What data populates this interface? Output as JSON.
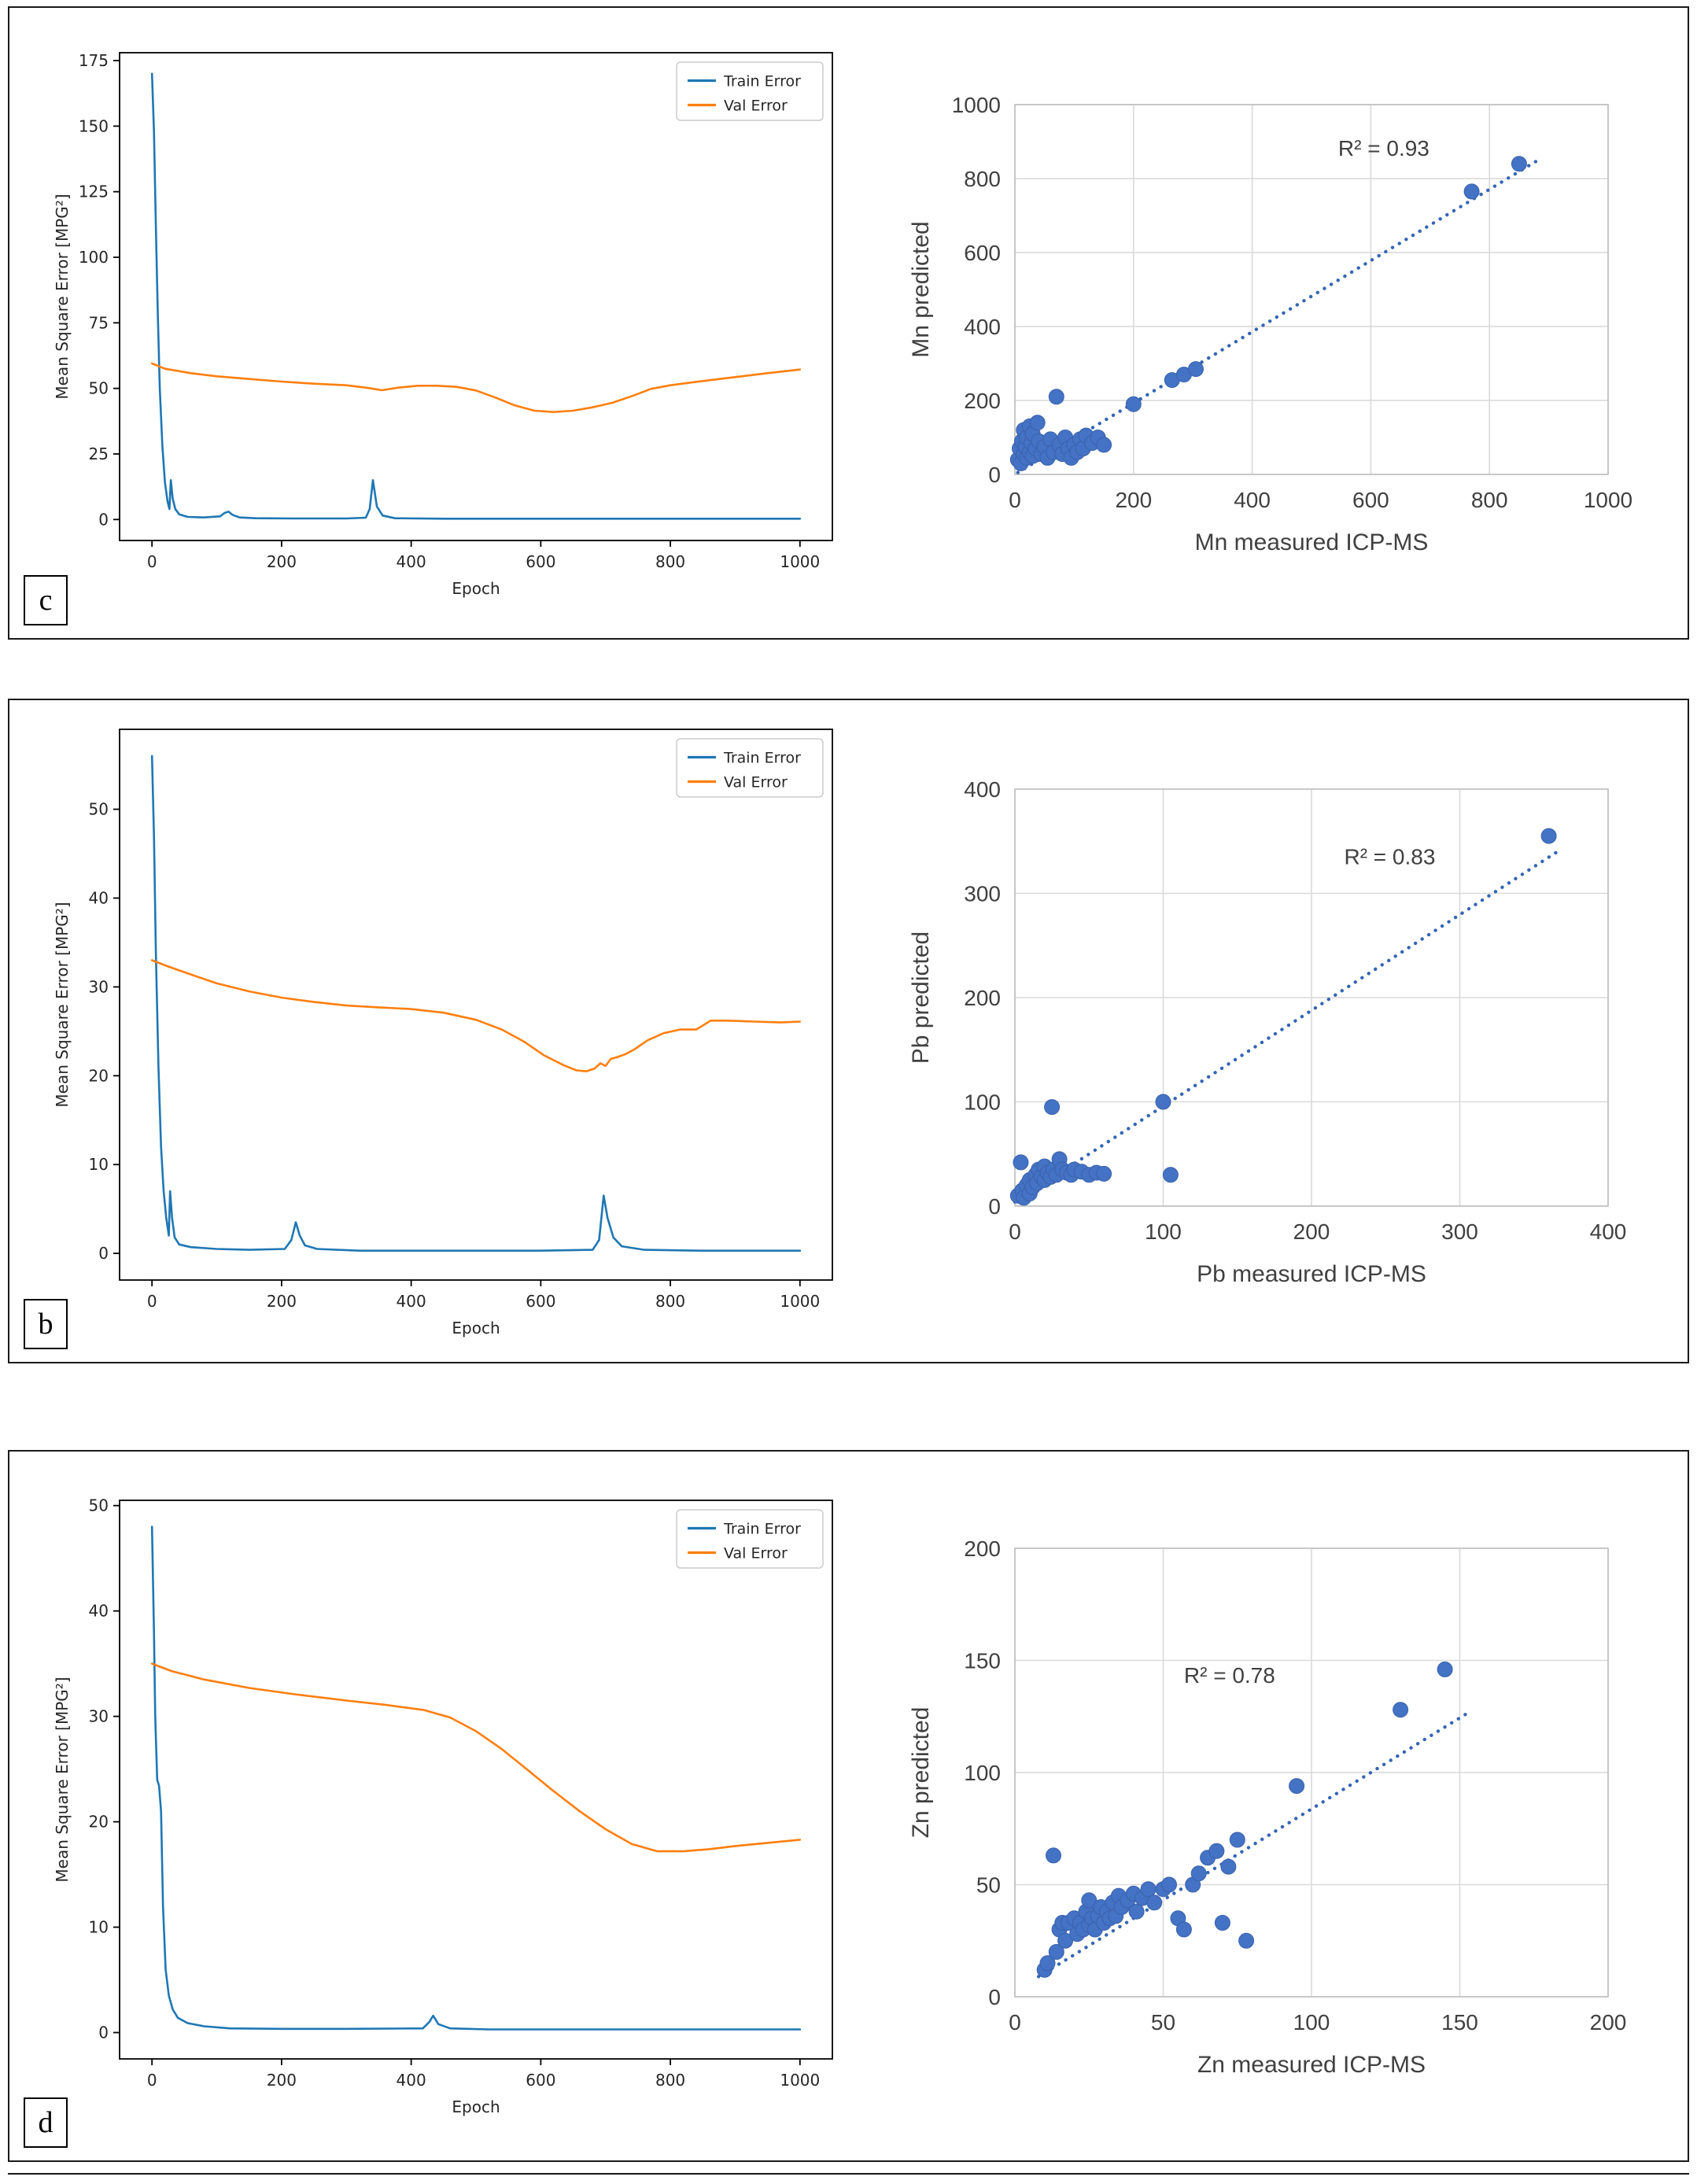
{
  "panels": [
    {
      "label": "c",
      "loss_chart_index": 0,
      "scatter_chart_index": 1
    },
    {
      "label": "b",
      "loss_chart_index": 2,
      "scatter_chart_index": 3
    },
    {
      "label": "d",
      "loss_chart_index": 4,
      "scatter_chart_index": 5
    }
  ],
  "colors": {
    "train_line": "#1f77b4",
    "val_line": "#ff7f0e",
    "scatter_point": "#4472c4",
    "trend_line": "#3465b4",
    "grid": "#d9d9d9",
    "plot_border_gray": "#bfbfbf",
    "axis_text_gray": "#404040",
    "axis_black": "#000000"
  },
  "chart_data": [
    {
      "type": "line",
      "title": "",
      "xlabel": "Epoch",
      "ylabel": "Mean Square Error [MPG²]",
      "xlim": [
        -50,
        1050
      ],
      "ylim": [
        -8,
        178
      ],
      "xticks": [
        0,
        200,
        400,
        600,
        800,
        1000
      ],
      "yticks": [
        0,
        25,
        50,
        75,
        100,
        125,
        150,
        175
      ],
      "legend_position": "top-right",
      "grid": false,
      "series": [
        {
          "name": "Train Error",
          "color": "#1f77b4",
          "x": [
            0,
            3,
            6,
            9,
            12,
            16,
            20,
            24,
            27,
            29,
            32,
            36,
            42,
            55,
            80,
            105,
            112,
            118,
            124,
            135,
            160,
            220,
            300,
            330,
            336,
            341,
            347,
            356,
            375,
            450,
            600,
            800,
            1000
          ],
          "y": [
            170,
            148,
            112,
            78,
            50,
            28,
            14,
            7,
            4,
            15,
            8,
            4,
            2,
            1,
            0.8,
            1.2,
            2.5,
            3,
            1.8,
            0.8,
            0.5,
            0.4,
            0.4,
            0.7,
            4,
            15,
            5,
            1.5,
            0.5,
            0.3,
            0.3,
            0.3,
            0.3
          ]
        },
        {
          "name": "Val Error",
          "color": "#ff7f0e",
          "x": [
            0,
            20,
            60,
            100,
            150,
            200,
            250,
            300,
            330,
            355,
            380,
            410,
            440,
            470,
            500,
            530,
            560,
            590,
            620,
            650,
            680,
            710,
            740,
            770,
            800,
            850,
            900,
            950,
            1000
          ],
          "y": [
            59.5,
            57.5,
            55.8,
            54.6,
            53.6,
            52.6,
            51.8,
            51.2,
            50.3,
            49.3,
            50.3,
            51,
            51,
            50.6,
            49.2,
            46.5,
            43.5,
            41.5,
            41,
            41.5,
            42.8,
            44.5,
            47,
            49.8,
            51.2,
            52.8,
            54.3,
            55.8,
            57.2
          ]
        }
      ]
    },
    {
      "type": "scatter",
      "title": "",
      "xlabel": "Mn measured ICP-MS",
      "ylabel": "Mn predicted",
      "xlim": [
        0,
        1000
      ],
      "ylim": [
        0,
        1000
      ],
      "xticks": [
        0,
        200,
        400,
        600,
        800,
        1000
      ],
      "yticks": [
        0,
        200,
        400,
        600,
        800,
        1000
      ],
      "grid": true,
      "r2_label": "R² = 0.93",
      "r2_pos": [
        545,
        862
      ],
      "point_color": "#4472c4",
      "trend_color": "#3465b4",
      "trend": [
        [
          5,
          5
        ],
        [
          880,
          848
        ]
      ],
      "points": [
        [
          5,
          40
        ],
        [
          8,
          70
        ],
        [
          10,
          30
        ],
        [
          12,
          90
        ],
        [
          15,
          55
        ],
        [
          15,
          120
        ],
        [
          18,
          75
        ],
        [
          20,
          45
        ],
        [
          20,
          100
        ],
        [
          25,
          60
        ],
        [
          25,
          130
        ],
        [
          28,
          85
        ],
        [
          30,
          50
        ],
        [
          30,
          110
        ],
        [
          35,
          70
        ],
        [
          38,
          140
        ],
        [
          40,
          90
        ],
        [
          45,
          55
        ],
        [
          50,
          75
        ],
        [
          55,
          45
        ],
        [
          60,
          95
        ],
        [
          65,
          60
        ],
        [
          70,
          210
        ],
        [
          75,
          80
        ],
        [
          80,
          55
        ],
        [
          85,
          100
        ],
        [
          90,
          70
        ],
        [
          95,
          45
        ],
        [
          100,
          80
        ],
        [
          105,
          60
        ],
        [
          110,
          95
        ],
        [
          115,
          70
        ],
        [
          120,
          105
        ],
        [
          130,
          85
        ],
        [
          140,
          100
        ],
        [
          150,
          80
        ],
        [
          200,
          190
        ],
        [
          265,
          255
        ],
        [
          285,
          270
        ],
        [
          305,
          285
        ],
        [
          770,
          765
        ],
        [
          850,
          840
        ]
      ]
    },
    {
      "type": "line",
      "title": "",
      "xlabel": "Epoch",
      "ylabel": "Mean Square Error [MPG²]",
      "xlim": [
        -50,
        1050
      ],
      "ylim": [
        -3,
        59
      ],
      "xticks": [
        0,
        200,
        400,
        600,
        800,
        1000
      ],
      "yticks": [
        0,
        10,
        20,
        30,
        40,
        50
      ],
      "legend_position": "top-right",
      "grid": false,
      "series": [
        {
          "name": "Train Error",
          "color": "#1f77b4",
          "x": [
            0,
            3,
            6,
            10,
            14,
            18,
            22,
            26,
            28,
            31,
            35,
            42,
            60,
            100,
            150,
            205,
            215,
            222,
            228,
            236,
            255,
            320,
            450,
            600,
            680,
            690,
            697,
            703,
            712,
            725,
            760,
            850,
            1000
          ],
          "y": [
            56,
            47,
            34,
            21,
            12,
            7,
            4,
            2,
            7,
            4,
            1.8,
            1,
            0.7,
            0.5,
            0.4,
            0.5,
            1.5,
            3.5,
            2,
            0.9,
            0.5,
            0.3,
            0.3,
            0.3,
            0.4,
            1.5,
            6.5,
            4,
            1.8,
            0.8,
            0.4,
            0.3,
            0.3
          ]
        },
        {
          "name": "Val Error",
          "color": "#ff7f0e",
          "x": [
            0,
            25,
            60,
            100,
            150,
            200,
            250,
            300,
            350,
            400,
            450,
            500,
            540,
            575,
            605,
            635,
            655,
            670,
            683,
            692,
            700,
            708,
            718,
            730,
            745,
            765,
            790,
            815,
            840,
            862,
            890,
            930,
            970,
            1000
          ],
          "y": [
            33,
            32.3,
            31.4,
            30.4,
            29.5,
            28.8,
            28.3,
            27.9,
            27.7,
            27.5,
            27.1,
            26.3,
            25.2,
            23.8,
            22.3,
            21.2,
            20.6,
            20.5,
            20.8,
            21.4,
            21.1,
            21.9,
            22.1,
            22.4,
            23,
            24,
            24.8,
            25.2,
            25.2,
            26.2,
            26.2,
            26.1,
            26,
            26.1
          ]
        }
      ]
    },
    {
      "type": "scatter",
      "title": "",
      "xlabel": "Pb measured ICP-MS",
      "ylabel": "Pb predicted",
      "xlim": [
        0,
        400
      ],
      "ylim": [
        0,
        400
      ],
      "xticks": [
        0,
        100,
        200,
        300,
        400
      ],
      "yticks": [
        0,
        100,
        200,
        300,
        400
      ],
      "grid": true,
      "r2_label": "R² = 0.83",
      "r2_pos": [
        222,
        328
      ],
      "point_color": "#4472c4",
      "trend_color": "#3465b4",
      "trend": [
        [
          0,
          4
        ],
        [
          368,
          342
        ]
      ],
      "points": [
        [
          2,
          10
        ],
        [
          4,
          42
        ],
        [
          5,
          15
        ],
        [
          6,
          8
        ],
        [
          8,
          20
        ],
        [
          10,
          12
        ],
        [
          10,
          25
        ],
        [
          12,
          18
        ],
        [
          14,
          30
        ],
        [
          15,
          22
        ],
        [
          16,
          35
        ],
        [
          18,
          28
        ],
        [
          20,
          25
        ],
        [
          20,
          38
        ],
        [
          22,
          32
        ],
        [
          24,
          28
        ],
        [
          25,
          95
        ],
        [
          26,
          35
        ],
        [
          28,
          30
        ],
        [
          30,
          45
        ],
        [
          32,
          35
        ],
        [
          35,
          32
        ],
        [
          38,
          30
        ],
        [
          40,
          35
        ],
        [
          45,
          33
        ],
        [
          50,
          30
        ],
        [
          55,
          32
        ],
        [
          60,
          31
        ],
        [
          100,
          100
        ],
        [
          105,
          30
        ],
        [
          360,
          355
        ]
      ]
    },
    {
      "type": "line",
      "title": "",
      "xlabel": "Epoch",
      "ylabel": "Mean Square Error [MPG²]",
      "xlim": [
        -50,
        1050
      ],
      "ylim": [
        -2.5,
        50.5
      ],
      "xticks": [
        0,
        200,
        400,
        600,
        800,
        1000
      ],
      "yticks": [
        0,
        10,
        20,
        30,
        40,
        50
      ],
      "legend_position": "top-right",
      "grid": false,
      "series": [
        {
          "name": "Train Error",
          "color": "#1f77b4",
          "x": [
            0,
            3,
            5,
            8,
            11,
            14,
            17,
            21,
            26,
            32,
            40,
            55,
            80,
            120,
            200,
            300,
            418,
            428,
            434,
            442,
            460,
            520,
            650,
            800,
            1000
          ],
          "y": [
            48,
            38,
            30,
            24,
            23.4,
            21,
            12,
            6,
            3.5,
            2.2,
            1.4,
            0.9,
            0.6,
            0.4,
            0.35,
            0.35,
            0.4,
            1,
            1.6,
            0.8,
            0.4,
            0.3,
            0.3,
            0.3,
            0.3
          ]
        },
        {
          "name": "Val Error",
          "color": "#ff7f0e",
          "x": [
            0,
            30,
            80,
            150,
            220,
            300,
            360,
            420,
            460,
            500,
            540,
            580,
            620,
            660,
            700,
            740,
            780,
            820,
            860,
            900,
            950,
            1000
          ],
          "y": [
            35,
            34.3,
            33.5,
            32.7,
            32.1,
            31.5,
            31.1,
            30.6,
            29.9,
            28.6,
            26.9,
            24.9,
            22.9,
            21,
            19.3,
            17.9,
            17.2,
            17.2,
            17.4,
            17.7,
            18,
            18.3
          ]
        }
      ]
    },
    {
      "type": "scatter",
      "title": "",
      "xlabel": "Zn measured ICP-MS",
      "ylabel": "Zn predicted",
      "xlim": [
        0,
        200
      ],
      "ylim": [
        0,
        200
      ],
      "xticks": [
        0,
        50,
        100,
        150,
        200
      ],
      "yticks": [
        0,
        50,
        100,
        150,
        200
      ],
      "grid": true,
      "r2_label": "R² = 0.78",
      "r2_pos": [
        57,
        140
      ],
      "point_color": "#4472c4",
      "trend_color": "#3465b4",
      "trend": [
        [
          8,
          9
        ],
        [
          152,
          126
        ]
      ],
      "points": [
        [
          10,
          12
        ],
        [
          11,
          15
        ],
        [
          13,
          63
        ],
        [
          14,
          20
        ],
        [
          15,
          30
        ],
        [
          16,
          33
        ],
        [
          17,
          25
        ],
        [
          18,
          33
        ],
        [
          20,
          35
        ],
        [
          21,
          28
        ],
        [
          22,
          33
        ],
        [
          23,
          30
        ],
        [
          24,
          38
        ],
        [
          25,
          32
        ],
        [
          25,
          43
        ],
        [
          26,
          35
        ],
        [
          27,
          30
        ],
        [
          28,
          36
        ],
        [
          29,
          40
        ],
        [
          30,
          33
        ],
        [
          31,
          38
        ],
        [
          32,
          35
        ],
        [
          33,
          42
        ],
        [
          34,
          36
        ],
        [
          35,
          45
        ],
        [
          36,
          40
        ],
        [
          38,
          43
        ],
        [
          40,
          46
        ],
        [
          41,
          38
        ],
        [
          43,
          44
        ],
        [
          45,
          48
        ],
        [
          47,
          42
        ],
        [
          50,
          48
        ],
        [
          52,
          50
        ],
        [
          55,
          35
        ],
        [
          57,
          30
        ],
        [
          60,
          50
        ],
        [
          62,
          55
        ],
        [
          65,
          62
        ],
        [
          68,
          65
        ],
        [
          70,
          33
        ],
        [
          72,
          58
        ],
        [
          75,
          70
        ],
        [
          78,
          25
        ],
        [
          95,
          94
        ],
        [
          130,
          128
        ],
        [
          145,
          146
        ]
      ]
    }
  ]
}
